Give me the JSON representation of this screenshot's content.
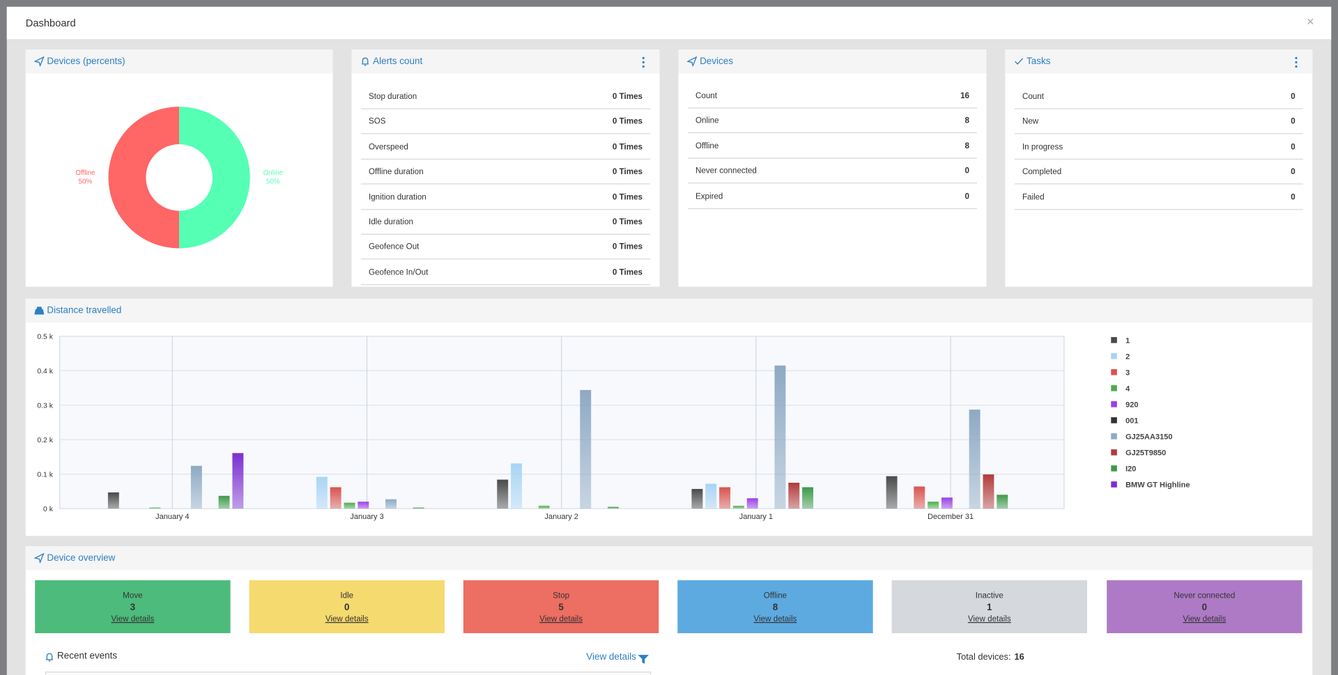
{
  "modal": {
    "title": "Dashboard",
    "close": "×"
  },
  "widgets": {
    "devices_percents": {
      "title": "Devices (percents)"
    },
    "alerts": {
      "title": "Alerts count",
      "rows": [
        [
          "Stop duration",
          "0 Times"
        ],
        [
          "SOS",
          "0 Times"
        ],
        [
          "Overspeed",
          "0 Times"
        ],
        [
          "Offline duration",
          "0 Times"
        ],
        [
          "Ignition duration",
          "0 Times"
        ],
        [
          "Idle duration",
          "0 Times"
        ],
        [
          "Geofence Out",
          "0 Times"
        ],
        [
          "Geofence In/Out",
          "0 Times"
        ]
      ]
    },
    "devices": {
      "title": "Devices",
      "rows": [
        [
          "Count",
          16
        ],
        [
          "Online",
          8
        ],
        [
          "Offline",
          8
        ],
        [
          "Never connected",
          0
        ],
        [
          "Expired",
          0
        ]
      ]
    },
    "tasks": {
      "title": "Tasks",
      "rows": [
        [
          "Count",
          0
        ],
        [
          "New",
          0
        ],
        [
          "In progress",
          0
        ],
        [
          "Completed",
          0
        ],
        [
          "Failed",
          0
        ]
      ]
    },
    "distance": {
      "title": "Distance travelled"
    },
    "overview": {
      "title": "Device overview",
      "cards": [
        {
          "label": "Move",
          "count": 3,
          "link": "View details",
          "color": "#4dbb7b"
        },
        {
          "label": "Idle",
          "count": 0,
          "link": "View details",
          "color": "#f5da6f"
        },
        {
          "label": "Stop",
          "count": 5,
          "link": "View details",
          "color": "#ed6e62"
        },
        {
          "label": "Offline",
          "count": 8,
          "link": "View details",
          "color": "#5daae1"
        },
        {
          "label": "Inactive",
          "count": 1,
          "link": "View details",
          "color": "#d5d8dc"
        },
        {
          "label": "Never connected",
          "count": 0,
          "link": "View details",
          "color": "#ae7ac6"
        }
      ],
      "recent_events": "Recent events",
      "view_details": "View details",
      "total_label": "Total devices:",
      "total": 16
    }
  },
  "chart_data": [
    {
      "type": "pie",
      "categories": [
        "Offline",
        "Online"
      ],
      "values": [
        50,
        50
      ],
      "value_labels": [
        "50%",
        "50%"
      ],
      "colors": [
        "#ff6666",
        "#55ffb4"
      ]
    },
    {
      "type": "bar",
      "categories": [
        "January 4",
        "January 3",
        "January 2",
        "January 1",
        "December 31"
      ],
      "series": [
        {
          "name": "1",
          "color": "#4a4a4a",
          "values": [
            0.047,
            0,
            0.084,
            0.057,
            0.094
          ]
        },
        {
          "name": "2",
          "color": "#a9d4f5",
          "values": [
            0,
            0.092,
            0.131,
            0.072,
            0
          ]
        },
        {
          "name": "3",
          "color": "#d9534f",
          "values": [
            0,
            0.062,
            0,
            0.062,
            0.064
          ]
        },
        {
          "name": "4",
          "color": "#4cae4c",
          "values": [
            0.003,
            0.017,
            0.008,
            0.008,
            0.02
          ]
        },
        {
          "name": "920",
          "color": "#9b40e6",
          "values": [
            0,
            0.02,
            0,
            0.03,
            0.032
          ]
        },
        {
          "name": "001",
          "color": "#333333",
          "values": [
            0,
            0,
            0,
            0,
            0
          ]
        },
        {
          "name": "GJ25AA3150",
          "color": "#8ea9c3",
          "values": [
            0.124,
            0.027,
            0.344,
            0.415,
            0.287
          ]
        },
        {
          "name": "GJ25T9850",
          "color": "#b23b3b",
          "values": [
            0,
            0,
            0,
            0.075,
            0.099
          ]
        },
        {
          "name": "I20",
          "color": "#3d9a4a",
          "values": [
            0.037,
            0.003,
            0.005,
            0.062,
            0.04
          ]
        },
        {
          "name": "BMW GT Highline",
          "color": "#7a2fd0",
          "values": [
            0.161,
            0,
            0,
            0,
            0
          ]
        }
      ],
      "ylim": [
        0,
        0.5
      ],
      "yticks": [
        {
          "value": 0,
          "label": "0 k"
        },
        {
          "value": 0.1,
          "label": "0.1 k"
        },
        {
          "value": 0.2,
          "label": "0.2 k"
        },
        {
          "value": 0.3,
          "label": "0.3 k"
        },
        {
          "value": 0.4,
          "label": "0.4 k"
        },
        {
          "value": 0.5,
          "label": "0.5 k"
        }
      ],
      "grid": true,
      "legend": "right"
    }
  ]
}
